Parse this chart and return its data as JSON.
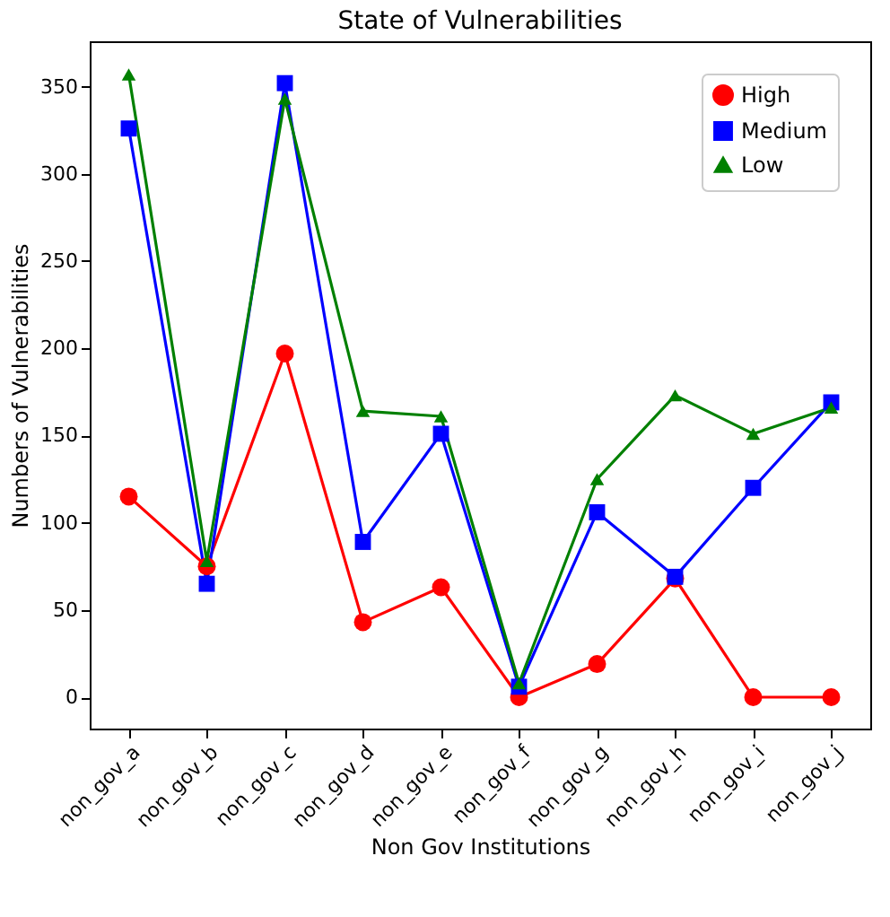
{
  "chart_data": {
    "type": "line",
    "title": "State of Vulnerabilities",
    "xlabel": "Non Gov Institutions",
    "ylabel": "Numbers of Vulnerabilities",
    "categories": [
      "non_gov_a",
      "non_gov_b",
      "non_gov_c",
      "non_gov_d",
      "non_gov_e",
      "non_gov_f",
      "non_gov_g",
      "non_gov_h",
      "non_gov_i",
      "non_gov_j"
    ],
    "series": [
      {
        "name": "High",
        "color": "#ff0000",
        "marker": "circle",
        "values": [
          115,
          75,
          197,
          43,
          63,
          0,
          19,
          68,
          0,
          0
        ]
      },
      {
        "name": "Medium",
        "color": "#0000ff",
        "marker": "square",
        "values": [
          326,
          65,
          352,
          89,
          151,
          6,
          106,
          69,
          120,
          169
        ]
      },
      {
        "name": "Low",
        "color": "#008000",
        "marker": "triangle",
        "values": [
          357,
          78,
          343,
          164,
          161,
          8,
          125,
          173,
          151,
          166
        ]
      }
    ],
    "ylim": [
      -18,
      376
    ],
    "yticks": [
      0,
      50,
      100,
      150,
      200,
      250,
      300,
      350
    ],
    "grid": false,
    "legend": "top right",
    "line_style": "solid"
  }
}
